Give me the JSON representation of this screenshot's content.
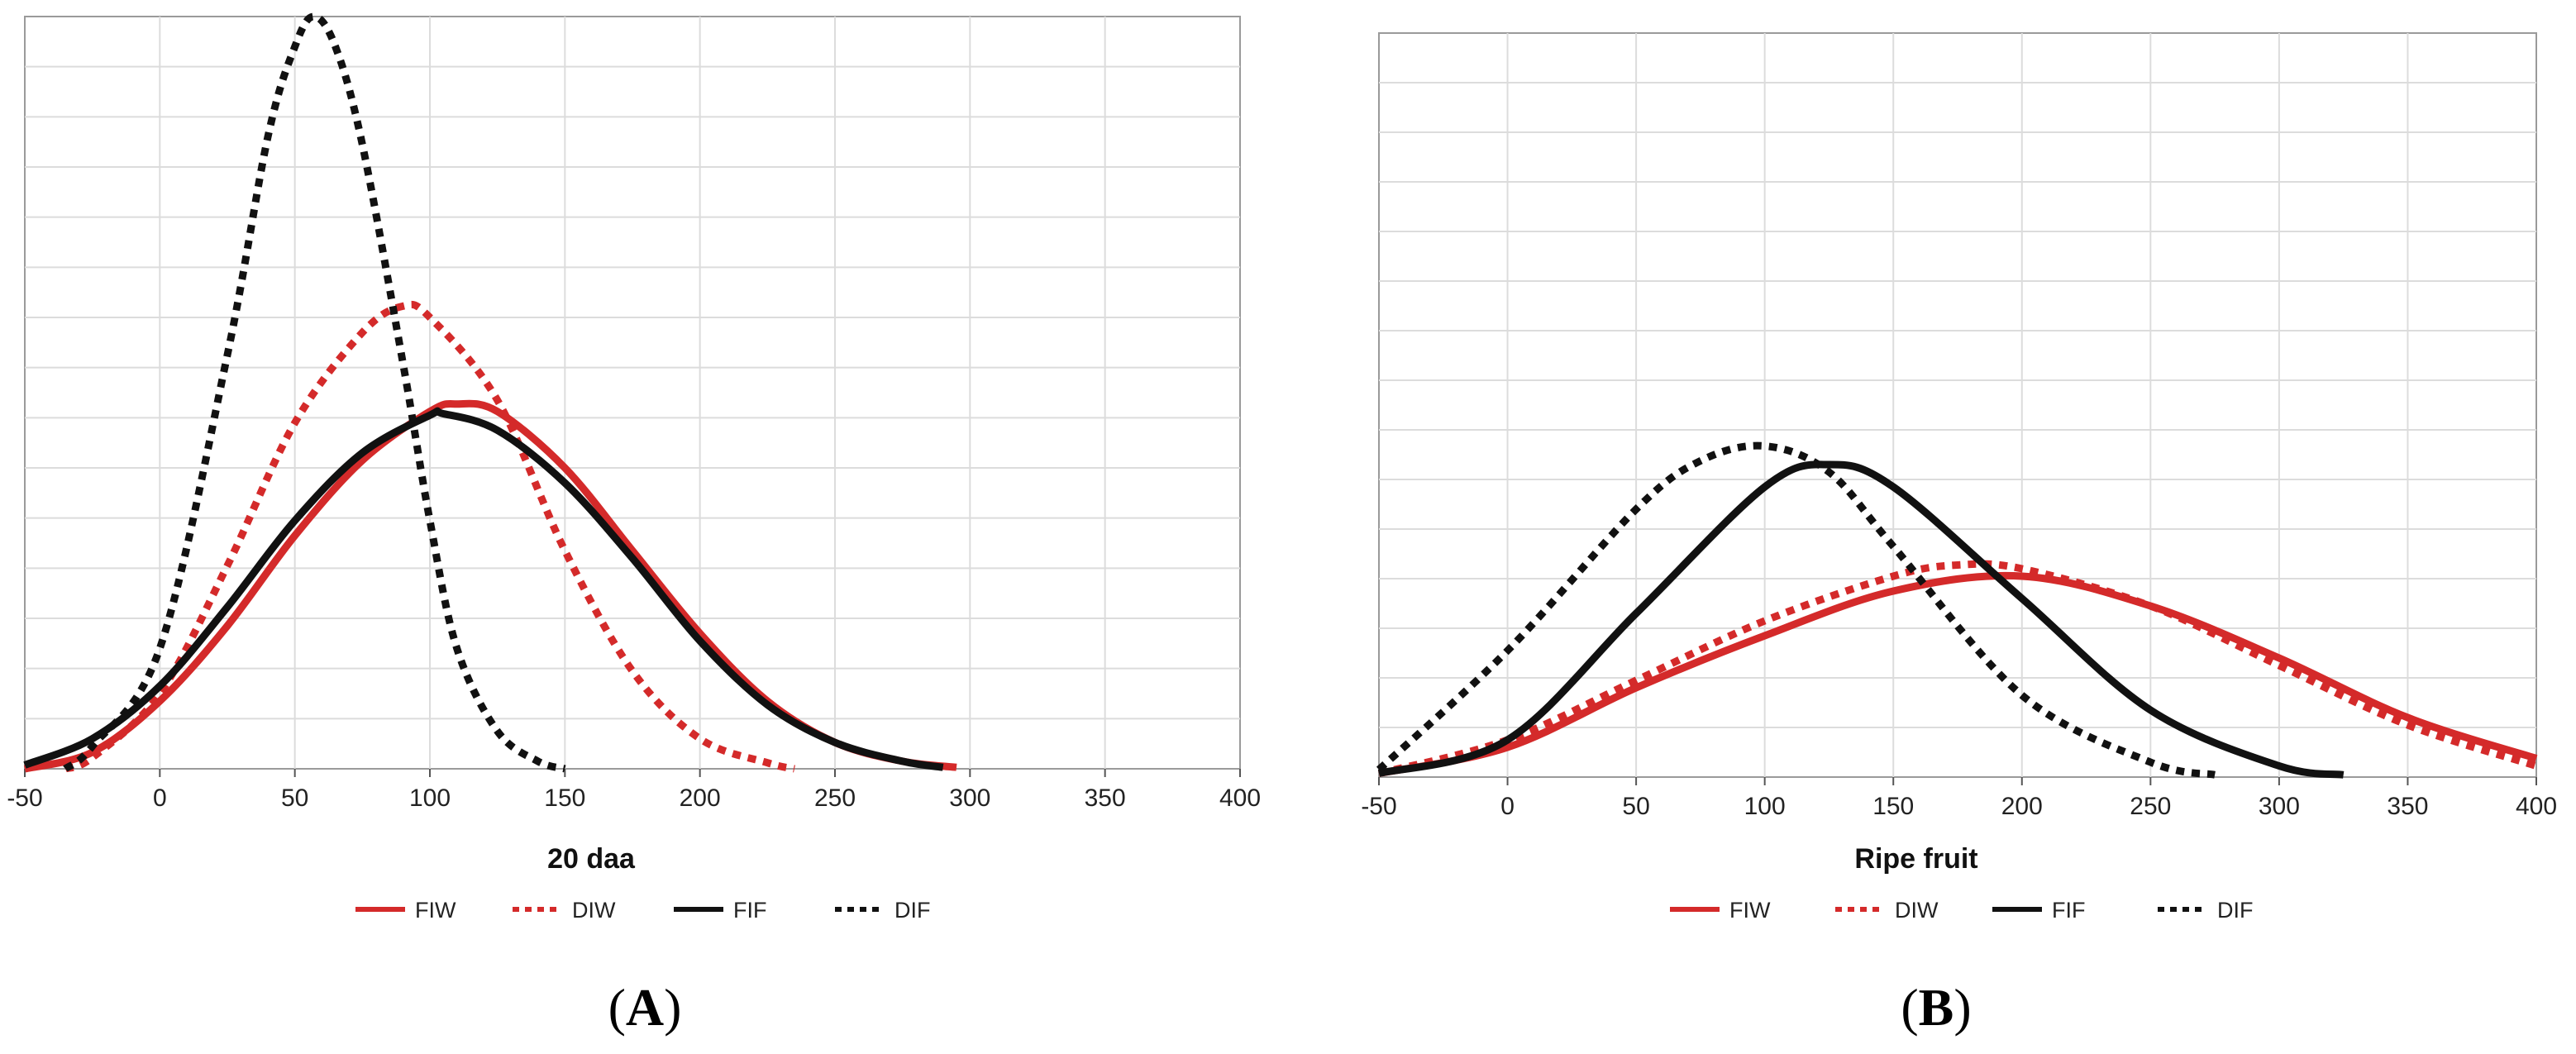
{
  "chart_data": [
    {
      "panel": "A",
      "type": "line",
      "xlabel": "20 daa",
      "xlim": [
        -50,
        400
      ],
      "xticks": [
        -50,
        0,
        50,
        100,
        150,
        200,
        250,
        300,
        350,
        400
      ],
      "ylim": [
        0,
        1
      ],
      "grid": true,
      "legend_position": "bottom",
      "series": [
        {
          "name": "FIW",
          "color": "#d42a2a",
          "dash": "solid",
          "x": [
            -50,
            -25,
            0,
            25,
            50,
            75,
            100,
            110,
            125,
            150,
            175,
            200,
            225,
            250,
            275,
            295
          ],
          "y": [
            0.0,
            0.022,
            0.09,
            0.19,
            0.31,
            0.41,
            0.475,
            0.485,
            0.475,
            0.4,
            0.29,
            0.18,
            0.09,
            0.035,
            0.01,
            0.002
          ]
        },
        {
          "name": "DIW",
          "color": "#d42a2a",
          "dash": "dotted",
          "x": [
            -35,
            -25,
            0,
            25,
            50,
            75,
            90,
            100,
            125,
            150,
            175,
            200,
            225,
            235
          ],
          "y": [
            0.0,
            0.015,
            0.1,
            0.27,
            0.46,
            0.58,
            0.615,
            0.6,
            0.49,
            0.29,
            0.13,
            0.04,
            0.008,
            0.0
          ]
        },
        {
          "name": "FIF",
          "color": "#111111",
          "dash": "solid",
          "x": [
            -50,
            -25,
            0,
            25,
            50,
            75,
            100,
            105,
            125,
            150,
            175,
            200,
            225,
            250,
            275,
            290
          ],
          "y": [
            0.005,
            0.04,
            0.11,
            0.215,
            0.33,
            0.42,
            0.47,
            0.472,
            0.45,
            0.38,
            0.28,
            0.17,
            0.085,
            0.035,
            0.01,
            0.002
          ]
        },
        {
          "name": "DIF",
          "color": "#111111",
          "dash": "dotted",
          "x": [
            -35,
            -25,
            0,
            25,
            40,
            50,
            57,
            65,
            75,
            90,
            100,
            110,
            125,
            140,
            150
          ],
          "y": [
            0.0,
            0.03,
            0.16,
            0.55,
            0.84,
            0.96,
            1.0,
            0.96,
            0.83,
            0.54,
            0.33,
            0.16,
            0.05,
            0.01,
            0.0
          ]
        }
      ]
    },
    {
      "panel": "B",
      "type": "line",
      "xlabel": "Ripe fruit",
      "xlim": [
        -50,
        400
      ],
      "xticks": [
        -50,
        0,
        50,
        100,
        150,
        200,
        250,
        300,
        350,
        400
      ],
      "ylim": [
        0,
        1
      ],
      "grid": true,
      "legend_position": "bottom",
      "series": [
        {
          "name": "FIW",
          "color": "#d42a2a",
          "dash": "solid",
          "x": [
            -50,
            0,
            50,
            100,
            150,
            200,
            250,
            300,
            350,
            400
          ],
          "y": [
            0.005,
            0.04,
            0.12,
            0.19,
            0.25,
            0.27,
            0.23,
            0.16,
            0.08,
            0.025
          ]
        },
        {
          "name": "DIW",
          "color": "#d42a2a",
          "dash": "dotted",
          "x": [
            -50,
            0,
            50,
            100,
            150,
            175,
            200,
            250,
            300,
            350,
            400
          ],
          "y": [
            0.005,
            0.05,
            0.13,
            0.21,
            0.27,
            0.285,
            0.28,
            0.23,
            0.15,
            0.07,
            0.015
          ]
        },
        {
          "name": "FIF",
          "color": "#111111",
          "dash": "solid",
          "x": [
            -50,
            0,
            50,
            100,
            125,
            150,
            200,
            250,
            300,
            325
          ],
          "y": [
            0.005,
            0.05,
            0.22,
            0.39,
            0.42,
            0.39,
            0.24,
            0.09,
            0.015,
            0.003
          ]
        },
        {
          "name": "DIF",
          "color": "#111111",
          "dash": "dotted",
          "x": [
            -50,
            0,
            50,
            75,
            100,
            125,
            150,
            200,
            250,
            275
          ],
          "y": [
            0.01,
            0.17,
            0.36,
            0.425,
            0.445,
            0.41,
            0.31,
            0.11,
            0.02,
            0.003
          ]
        }
      ]
    }
  ],
  "panel_labels": [
    "A",
    "B"
  ]
}
